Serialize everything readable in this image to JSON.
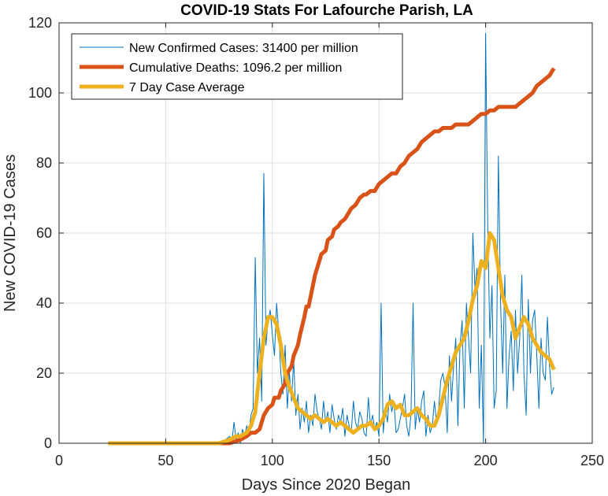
{
  "chart_data": {
    "type": "line",
    "title": "COVID-19 Stats For Lafourche Parish, LA",
    "xlabel": "Days Since 2020 Began",
    "ylabel": "New COVID-19 Cases",
    "xlim": [
      0,
      250
    ],
    "ylim": [
      0,
      120
    ],
    "xticks": [
      "0",
      "50",
      "100",
      "150",
      "200",
      "250"
    ],
    "yticks": [
      "0",
      "20",
      "40",
      "60",
      "80",
      "100",
      "120"
    ],
    "grid": true,
    "legend_position": "top-left",
    "series": [
      {
        "name": "New Confirmed Cases: 31400 per million",
        "color": "#0072BD",
        "line_width": "thin",
        "x": [
          23,
          30,
          40,
          50,
          60,
          70,
          75,
          78,
          80,
          81,
          82,
          83,
          84,
          85,
          86,
          87,
          88,
          89,
          90,
          91,
          92,
          93,
          94,
          95,
          96,
          97,
          98,
          99,
          100,
          101,
          102,
          103,
          104,
          105,
          106,
          107,
          108,
          109,
          110,
          111,
          112,
          113,
          114,
          115,
          116,
          117,
          118,
          119,
          120,
          121,
          122,
          123,
          124,
          125,
          126,
          127,
          128,
          129,
          130,
          131,
          132,
          133,
          134,
          135,
          136,
          137,
          138,
          139,
          140,
          141,
          142,
          143,
          144,
          145,
          146,
          147,
          148,
          149,
          150,
          151,
          152,
          153,
          154,
          155,
          156,
          157,
          158,
          159,
          160,
          161,
          162,
          163,
          164,
          165,
          166,
          167,
          168,
          169,
          170,
          171,
          172,
          173,
          174,
          175,
          176,
          177,
          178,
          179,
          180,
          181,
          182,
          183,
          184,
          185,
          186,
          187,
          188,
          189,
          190,
          191,
          192,
          193,
          194,
          195,
          196,
          197,
          198,
          199,
          200,
          201,
          202,
          203,
          204,
          205,
          206,
          207,
          208,
          209,
          210,
          211,
          212,
          213,
          214,
          215,
          216,
          217,
          218,
          219,
          220,
          221,
          222,
          223,
          224,
          225,
          226,
          227,
          228,
          229,
          230,
          231,
          232
        ],
        "y": [
          0,
          0,
          0,
          0,
          0,
          0,
          0,
          1,
          2,
          0,
          6,
          1,
          3,
          0,
          4,
          2,
          5,
          3,
          8,
          10,
          53,
          20,
          30,
          12,
          77,
          28,
          35,
          38,
          31,
          25,
          40,
          32,
          20,
          14,
          28,
          10,
          20,
          12,
          24,
          8,
          14,
          4,
          10,
          6,
          12,
          3,
          8,
          5,
          14,
          9,
          7,
          4,
          12,
          6,
          9,
          3,
          11,
          7,
          4,
          8,
          6,
          10,
          2,
          8,
          5,
          3,
          12,
          6,
          4,
          9,
          7,
          3,
          2,
          13,
          5,
          8,
          4,
          6,
          2,
          40,
          3,
          10,
          6,
          14,
          9,
          12,
          3,
          4,
          7,
          10,
          14,
          5,
          2,
          8,
          40,
          4,
          10,
          6,
          12,
          15,
          2,
          8,
          3,
          5,
          12,
          6,
          10,
          18,
          20,
          16,
          3,
          25,
          12,
          22,
          30,
          5,
          28,
          35,
          10,
          40,
          30,
          20,
          60,
          44,
          50,
          10,
          28,
          0,
          117,
          62,
          30,
          45,
          10,
          15,
          82,
          40,
          20,
          48,
          10,
          25,
          32,
          15,
          38,
          20,
          30,
          48,
          20,
          8,
          41,
          20,
          35,
          38,
          25,
          10,
          30,
          20,
          18,
          36,
          22,
          14,
          16
        ],
        "data_label": ""
      },
      {
        "name": "Cumulative Deaths: 1096.2 per million",
        "color": "#D95319",
        "line_width": "thick",
        "x": [
          75,
          80,
          85,
          88,
          90,
          92,
          94,
          95,
          96,
          98,
          100,
          101,
          103,
          104,
          106,
          107,
          109,
          110,
          112,
          113,
          115,
          116,
          117,
          119,
          120,
          121,
          122,
          123,
          125,
          126,
          128,
          129,
          131,
          132,
          134,
          135,
          137,
          139,
          141,
          143,
          144,
          146,
          148,
          150,
          152,
          154,
          156,
          158,
          160,
          162,
          164,
          166,
          168,
          170,
          172,
          174,
          176,
          178,
          180,
          182,
          184,
          186,
          188,
          190,
          192,
          194,
          196,
          198,
          200,
          202,
          204,
          206,
          208,
          210,
          212,
          214,
          216,
          218,
          220,
          222,
          224,
          226,
          228,
          230,
          232
        ],
        "y": [
          0,
          0,
          1,
          2,
          3,
          3,
          4,
          6,
          8,
          10,
          11,
          13,
          13,
          15,
          17,
          20,
          22,
          25,
          28,
          31,
          36,
          39,
          39,
          45,
          48,
          50,
          52,
          54,
          55,
          58,
          59,
          61,
          62,
          63,
          64,
          65,
          67,
          68,
          70,
          71,
          71,
          72,
          72,
          74,
          75,
          76,
          77,
          77,
          79,
          80,
          82,
          83,
          84,
          86,
          87,
          88,
          89,
          89,
          90,
          90,
          90,
          91,
          91,
          91,
          91,
          92,
          93,
          94,
          94,
          95,
          95,
          96,
          96,
          96,
          96,
          96,
          97,
          98,
          99,
          100,
          102,
          103,
          104,
          105,
          107
        ],
        "data_label": ""
      },
      {
        "name": "7 Day Case Average",
        "color": "#EDB120",
        "line_width": "thick",
        "x": [
          23,
          40,
          60,
          75,
          80,
          83,
          85,
          88,
          90,
          92,
          94,
          96,
          98,
          100,
          102,
          104,
          106,
          108,
          110,
          112,
          114,
          116,
          118,
          120,
          122,
          124,
          126,
          128,
          130,
          132,
          134,
          136,
          138,
          140,
          142,
          144,
          146,
          148,
          150,
          152,
          154,
          156,
          158,
          160,
          162,
          164,
          166,
          168,
          170,
          172,
          174,
          176,
          178,
          180,
          182,
          184,
          186,
          188,
          190,
          192,
          194,
          196,
          198,
          200,
          202,
          204,
          206,
          208,
          210,
          212,
          214,
          216,
          218,
          220,
          222,
          224,
          226,
          228,
          230,
          232
        ],
        "y": [
          0,
          0,
          0,
          0,
          1,
          2,
          2,
          3,
          5,
          9,
          20,
          30,
          36,
          36,
          34,
          28,
          20,
          16,
          13,
          10,
          9,
          8,
          7,
          8,
          7,
          6,
          7,
          6,
          5,
          6,
          5,
          4,
          3,
          4,
          5,
          5,
          6,
          4,
          5,
          7,
          11,
          12,
          10,
          11,
          8,
          8,
          9,
          10,
          8,
          7,
          5,
          5,
          8,
          13,
          18,
          22,
          26,
          28,
          30,
          35,
          41,
          45,
          52,
          50,
          60,
          58,
          50,
          42,
          38,
          36,
          30,
          33,
          36,
          34,
          30,
          28,
          26,
          25,
          24,
          21
        ],
        "data_label": ""
      }
    ]
  }
}
